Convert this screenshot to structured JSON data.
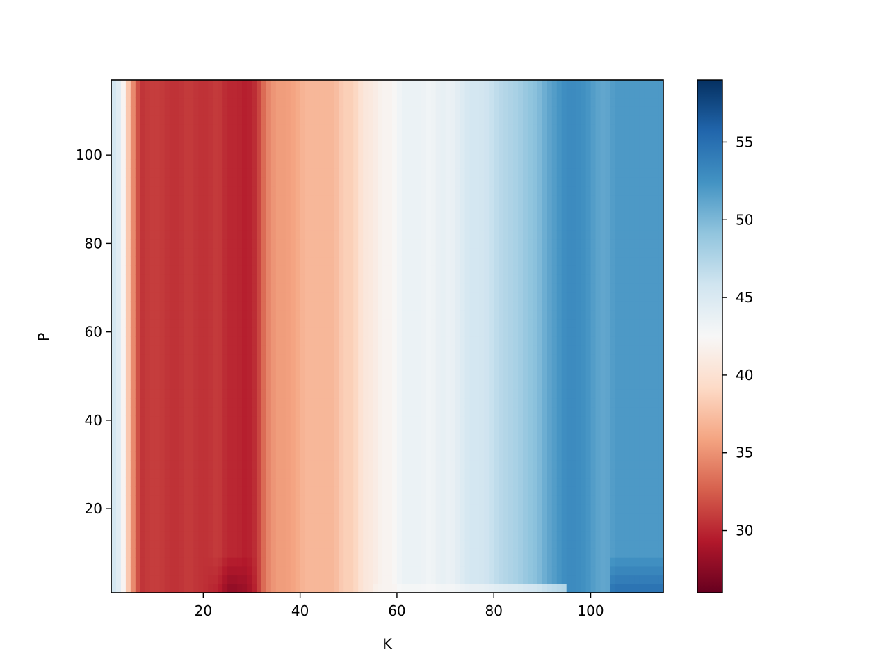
{
  "chart_data": {
    "type": "heatmap",
    "title": "",
    "xlabel": "K",
    "ylabel": "P",
    "xlim": [
      1,
      115
    ],
    "ylim": [
      1,
      117
    ],
    "x_ticks": [
      20,
      40,
      60,
      80,
      100
    ],
    "y_ticks": [
      20,
      40,
      60,
      80,
      100
    ],
    "colormap": "RdBu",
    "colorbar": {
      "min": 26,
      "max": 59,
      "ticks": [
        30,
        35,
        40,
        45,
        50,
        55
      ]
    },
    "description_of_values": "Value depends mainly on K (columns); nearly constant in P except near P=1..10",
    "column_profile_K": [
      1,
      3,
      5,
      7,
      9,
      11,
      13,
      15,
      17,
      19,
      21,
      23,
      25,
      27,
      29,
      31,
      33,
      35,
      37,
      39,
      41,
      43,
      45,
      47,
      49,
      51,
      53,
      55,
      57,
      59,
      61,
      63,
      65,
      67,
      69,
      71,
      73,
      75,
      77,
      79,
      81,
      83,
      85,
      87,
      89,
      91,
      93,
      95,
      97,
      99,
      101,
      103,
      105,
      107,
      109,
      111,
      113,
      115
    ],
    "column_profile_value": [
      46,
      44,
      36,
      30.5,
      31,
      31,
      30.5,
      30.5,
      31,
      30.5,
      30.5,
      31,
      30,
      30,
      29.5,
      30.5,
      34,
      35.5,
      35.5,
      36,
      37,
      37,
      37,
      37,
      38.5,
      38.5,
      40.5,
      41,
      42,
      42,
      43.5,
      43.5,
      43.5,
      43,
      44,
      43.5,
      44.5,
      45.5,
      45.5,
      46,
      47,
      47.5,
      48,
      49,
      49.5,
      51,
      52,
      53,
      53,
      52.5,
      51.5,
      51,
      52,
      52,
      52,
      52,
      52,
      52
    ],
    "low_P_feature": "Darker (lower) values near K=22-30 and higher values near K=110-115 for P below ~10"
  }
}
